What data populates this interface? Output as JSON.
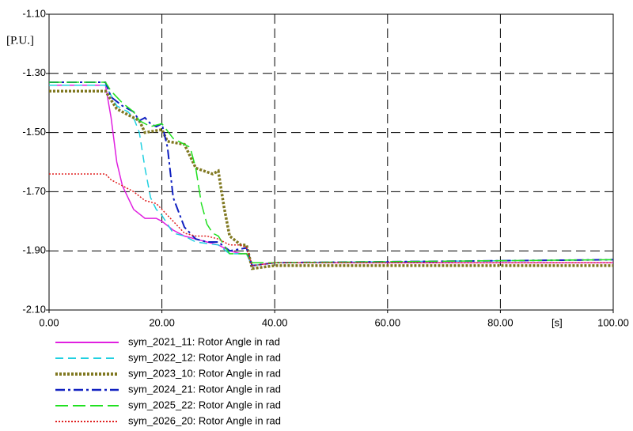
{
  "chart_data": {
    "type": "line",
    "y_unit": "[P.U.]",
    "x_unit": "[s]",
    "xlim": [
      0,
      100
    ],
    "ylim": [
      -2.1,
      -1.1
    ],
    "xticks": [
      {
        "value": 0,
        "label": "0.00"
      },
      {
        "value": 20,
        "label": "20.00"
      },
      {
        "value": 40,
        "label": "40.00"
      },
      {
        "value": 60,
        "label": "60.00"
      },
      {
        "value": 80,
        "label": "80.00"
      },
      {
        "value": 100,
        "label": "100.00"
      }
    ],
    "yticks": [
      {
        "value": -2.1,
        "label": "-2.10"
      },
      {
        "value": -1.9,
        "label": "-1.90"
      },
      {
        "value": -1.7,
        "label": "-1.70"
      },
      {
        "value": -1.5,
        "label": "-1.50"
      },
      {
        "value": -1.3,
        "label": "-1.30"
      },
      {
        "value": -1.1,
        "label": "-1.10"
      }
    ],
    "grid": true,
    "series": [
      {
        "name": "sym_2021_11: Rotor Angle in rad",
        "color": "#e020e0",
        "style": "solid",
        "x": [
          0,
          10,
          11,
          12,
          13,
          14,
          15,
          17,
          19,
          20,
          22,
          24,
          26,
          28,
          30,
          32,
          34,
          35,
          36,
          40,
          100
        ],
        "values": [
          -1.34,
          -1.34,
          -1.45,
          -1.6,
          -1.68,
          -1.72,
          -1.76,
          -1.79,
          -1.79,
          -1.8,
          -1.83,
          -1.85,
          -1.86,
          -1.87,
          -1.88,
          -1.9,
          -1.91,
          -1.91,
          -1.95,
          -1.94,
          -1.94
        ]
      },
      {
        "name": "sym_2022_12: Rotor Angle in rad",
        "color": "#20d0e0",
        "style": "dashed",
        "x": [
          0,
          10,
          12,
          14,
          15,
          16,
          17,
          18,
          19,
          20,
          22,
          24,
          26,
          30,
          32,
          35,
          36,
          40,
          100
        ],
        "values": [
          -1.34,
          -1.34,
          -1.41,
          -1.43,
          -1.45,
          -1.5,
          -1.62,
          -1.72,
          -1.76,
          -1.78,
          -1.84,
          -1.85,
          -1.87,
          -1.88,
          -1.91,
          -1.91,
          -1.95,
          -1.94,
          -1.93
        ]
      },
      {
        "name": "sym_2023_10: Rotor Angle in rad",
        "color": "#807820",
        "style": "dotted",
        "x": [
          0,
          10,
          11,
          12,
          14,
          16,
          17,
          20,
          21,
          24,
          25,
          26,
          29,
          30,
          31,
          32,
          34,
          35,
          36,
          40,
          100
        ],
        "values": [
          -1.36,
          -1.36,
          -1.39,
          -1.42,
          -1.44,
          -1.46,
          -1.5,
          -1.49,
          -1.53,
          -1.54,
          -1.58,
          -1.62,
          -1.64,
          -1.63,
          -1.75,
          -1.85,
          -1.88,
          -1.88,
          -1.96,
          -1.95,
          -1.95
        ]
      },
      {
        "name": "sym_2024_21: Rotor Angle in rad",
        "color": "#1020c0",
        "style": "dashdot",
        "x": [
          0,
          10,
          11,
          13,
          15,
          16,
          17,
          18,
          19,
          20,
          21,
          22,
          23,
          24,
          26,
          28,
          30,
          32,
          35,
          36,
          40,
          100
        ],
        "values": [
          -1.33,
          -1.33,
          -1.38,
          -1.41,
          -1.43,
          -1.46,
          -1.45,
          -1.47,
          -1.48,
          -1.47,
          -1.55,
          -1.72,
          -1.77,
          -1.82,
          -1.86,
          -1.87,
          -1.87,
          -1.9,
          -1.89,
          -1.95,
          -1.94,
          -1.93
        ]
      },
      {
        "name": "sym_2025_22: Rotor Angle in rad",
        "color": "#20e020",
        "style": "longdash",
        "x": [
          0,
          10,
          11,
          13,
          15,
          16,
          18,
          20,
          22,
          24,
          25,
          26,
          27,
          28,
          29,
          30,
          32,
          34,
          35,
          36,
          40,
          100
        ],
        "values": [
          -1.33,
          -1.33,
          -1.36,
          -1.4,
          -1.43,
          -1.46,
          -1.48,
          -1.47,
          -1.52,
          -1.54,
          -1.55,
          -1.62,
          -1.74,
          -1.81,
          -1.84,
          -1.85,
          -1.91,
          -1.91,
          -1.91,
          -1.94,
          -1.94,
          -1.93
        ]
      },
      {
        "name": "sym_2026_20: Rotor Angle in rad",
        "color": "#e02020",
        "style": "finedot",
        "x": [
          0,
          10,
          11,
          13,
          15,
          17,
          19,
          20,
          22,
          24,
          26,
          28,
          30,
          32,
          34,
          35,
          36,
          40,
          100
        ],
        "values": [
          -1.64,
          -1.64,
          -1.66,
          -1.68,
          -1.7,
          -1.73,
          -1.74,
          -1.76,
          -1.8,
          -1.84,
          -1.85,
          -1.85,
          -1.86,
          -1.88,
          -1.88,
          -1.89,
          -1.95,
          -1.94,
          -1.94
        ]
      }
    ]
  }
}
